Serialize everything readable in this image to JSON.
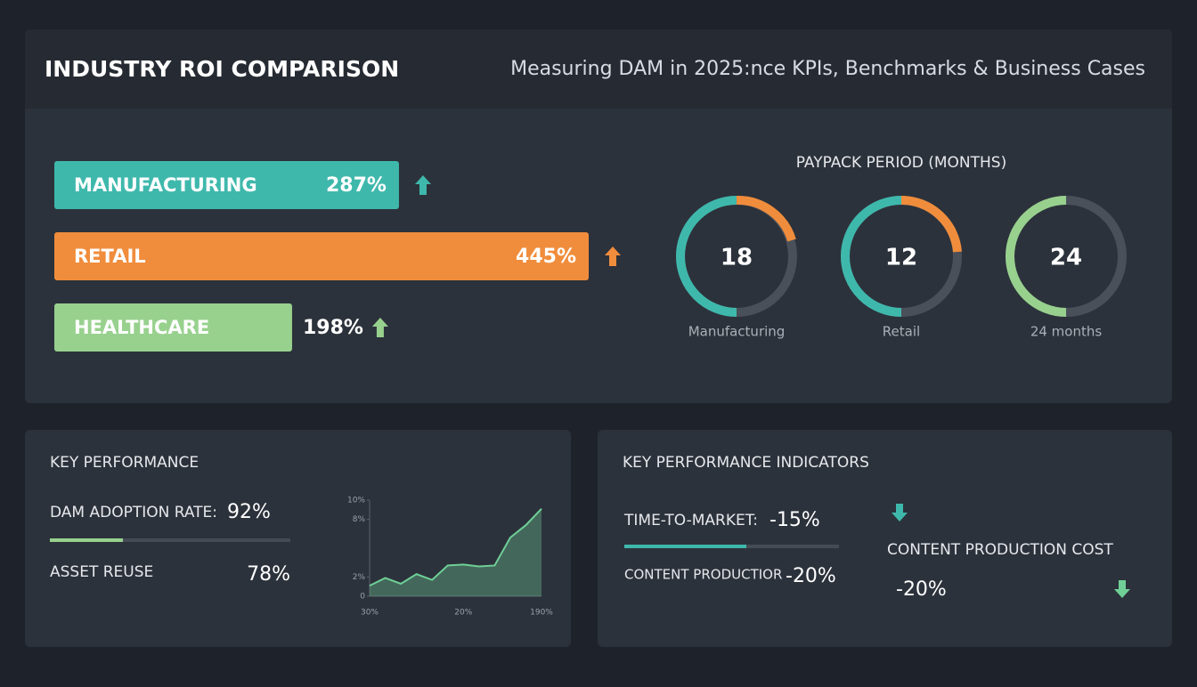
{
  "header": {
    "title": "INDUSTRY ROI COMPARISON",
    "subtitle": "Measuring DAM in 2025:nce KPIs, Benchmarks & Business Cases"
  },
  "chart_data": [
    {
      "type": "bar",
      "categories": [
        "MANUFACTURING",
        "RETAIL",
        "HEALTHCARE"
      ],
      "values": [
        287,
        445,
        198
      ],
      "value_labels": [
        "287%",
        "445%",
        "198%"
      ],
      "colors": [
        "#3fb8ac",
        "#f08d3c",
        "#98d18e"
      ]
    },
    {
      "type": "line",
      "categories": [
        "30%",
        null,
        null,
        null,
        null,
        null,
        "20%",
        null,
        null,
        null,
        null,
        "190%"
      ],
      "values": [
        1.1,
        1.9,
        1.3,
        2.3,
        1.7,
        3.2,
        3.3,
        3.1,
        3.2,
        6.1,
        7.4,
        9.1
      ],
      "color": "#6fcf97",
      "ylim": [
        0,
        10
      ],
      "yticks": [
        0,
        {
          "value": 2,
          "label": "2%"
        },
        {
          "value": 8,
          "label": "8%"
        },
        {
          "value": 10,
          "label": "10%"
        }
      ]
    }
  ],
  "payback": {
    "title": "PAYPACK PERIOD (MONTHS)",
    "items": [
      {
        "value": 18,
        "label": "Manufacturing"
      },
      {
        "value": 12,
        "label": "Retail"
      },
      {
        "value": 24,
        "label": "24 months"
      }
    ]
  },
  "kpi_left": {
    "title": "KEY PERFORMANCE",
    "metrics": [
      {
        "label": "DAM ADOPTION RATE:",
        "value": "92%"
      },
      {
        "label": "ASSET REUSE",
        "value": "78%"
      }
    ]
  },
  "kpi_right": {
    "title": "KEY PERFORMANCE INDICATORS",
    "metrics": [
      {
        "label": "TIME-TO-MARKET:",
        "value": "-15%"
      },
      {
        "label": "CONTENT PRODUCTIOR",
        "value": "-20%"
      },
      {
        "label": "CONTENT PRODUCTION COST",
        "value": "-20%"
      }
    ]
  }
}
